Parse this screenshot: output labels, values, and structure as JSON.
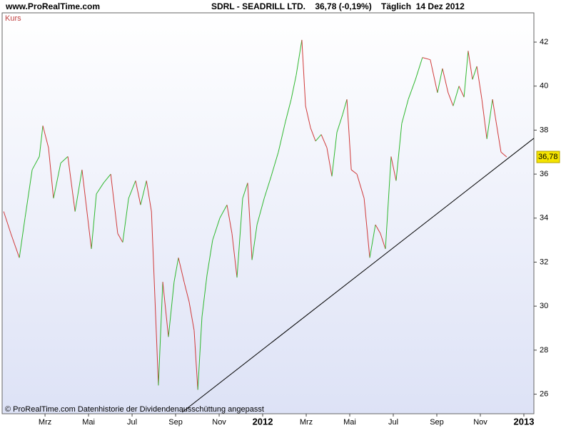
{
  "chart_data": {
    "type": "line",
    "site": "www.ProRealTime.com",
    "title": "SDRL - SEADRILL LTD.    36,78 (-0,19%)    Täglich  14 Dez 2012",
    "series_label": "Kurs",
    "footer": "© ProRealTime.com  Datenhistorie der Dividendenausschüttung angepasst",
    "x": [
      0.1,
      0.43,
      0.82,
      1.08,
      1.41,
      1.74,
      1.9,
      2.16,
      2.39,
      2.72,
      3.05,
      3.38,
      3.7,
      4.13,
      4.36,
      4.69,
      5.02,
      5.34,
      5.57,
      5.84,
      6.16,
      6.39,
      6.66,
      6.89,
      7.21,
      7.41,
      7.67,
      7.93,
      8.13,
      8.39,
      8.62,
      8.85,
      9.02,
      9.21,
      9.44,
      9.7,
      10.03,
      10.36,
      10.59,
      10.82,
      11.08,
      11.31,
      11.51,
      11.74,
      12.07,
      12.39,
      12.72,
      13.05,
      13.31,
      13.54,
      13.8,
      13.97,
      14.2,
      14.43,
      14.69,
      14.95,
      15.18,
      15.41,
      15.67,
      15.87,
      16.07,
      16.33,
      16.66,
      16.92,
      17.18,
      17.41,
      17.64,
      17.9,
      18.13,
      18.39,
      18.69,
      19.02,
      19.34,
      19.7,
      20.03,
      20.26,
      20.52,
      20.75,
      21.02,
      21.25,
      21.44,
      21.64,
      21.84,
      22.07,
      22.3,
      22.56,
      22.72,
      22.95,
      23.21
    ],
    "values": [
      34.3,
      33.3,
      32.2,
      34.0,
      36.2,
      36.8,
      38.2,
      37.2,
      34.9,
      36.5,
      36.8,
      34.3,
      36.2,
      32.6,
      35.1,
      35.6,
      36.0,
      33.3,
      32.9,
      34.9,
      35.7,
      34.6,
      35.7,
      34.3,
      26.4,
      31.1,
      28.6,
      31.1,
      32.2,
      31.1,
      30.2,
      28.9,
      26.2,
      29.5,
      31.4,
      33.0,
      34.0,
      34.6,
      33.3,
      31.3,
      34.9,
      35.6,
      32.1,
      33.7,
      34.9,
      35.9,
      37.0,
      38.4,
      39.4,
      40.5,
      42.1,
      39.1,
      38.1,
      37.5,
      37.8,
      37.2,
      35.9,
      37.9,
      38.7,
      39.4,
      36.2,
      36.0,
      34.9,
      32.2,
      33.7,
      33.3,
      32.6,
      36.8,
      35.7,
      38.3,
      39.4,
      40.3,
      41.3,
      41.2,
      39.7,
      40.8,
      39.7,
      39.1,
      40.0,
      39.5,
      41.6,
      40.3,
      40.9,
      39.4,
      37.6,
      39.4,
      38.4,
      37.0,
      36.78
    ],
    "up_color": "#2fb82f",
    "down_color": "#d03a3a",
    "last_price": {
      "value": 36.78,
      "label": "36,78"
    },
    "trend_line": {
      "x": [
        8.3,
        24.46
      ],
      "y": [
        25.18,
        37.63
      ]
    },
    "xlim": [
      0.03,
      24.46
    ],
    "ylim": [
      25.11,
      43.33
    ],
    "xticks": [
      {
        "value": 2,
        "label": "Mrz"
      },
      {
        "value": 4,
        "label": "Mai"
      },
      {
        "value": 6,
        "label": "Jul"
      },
      {
        "value": 8,
        "label": "Sep"
      },
      {
        "value": 10,
        "label": "Nov"
      },
      {
        "value": 12,
        "label": "2012"
      },
      {
        "value": 14,
        "label": "Mrz"
      },
      {
        "value": 16,
        "label": "Mai"
      },
      {
        "value": 18,
        "label": "Jul"
      },
      {
        "value": 20,
        "label": "Sep"
      },
      {
        "value": 22,
        "label": "Nov"
      },
      {
        "value": 24,
        "label": "2013"
      }
    ],
    "yticks": [
      26,
      28,
      30,
      32,
      34,
      36,
      38,
      40,
      42
    ]
  }
}
